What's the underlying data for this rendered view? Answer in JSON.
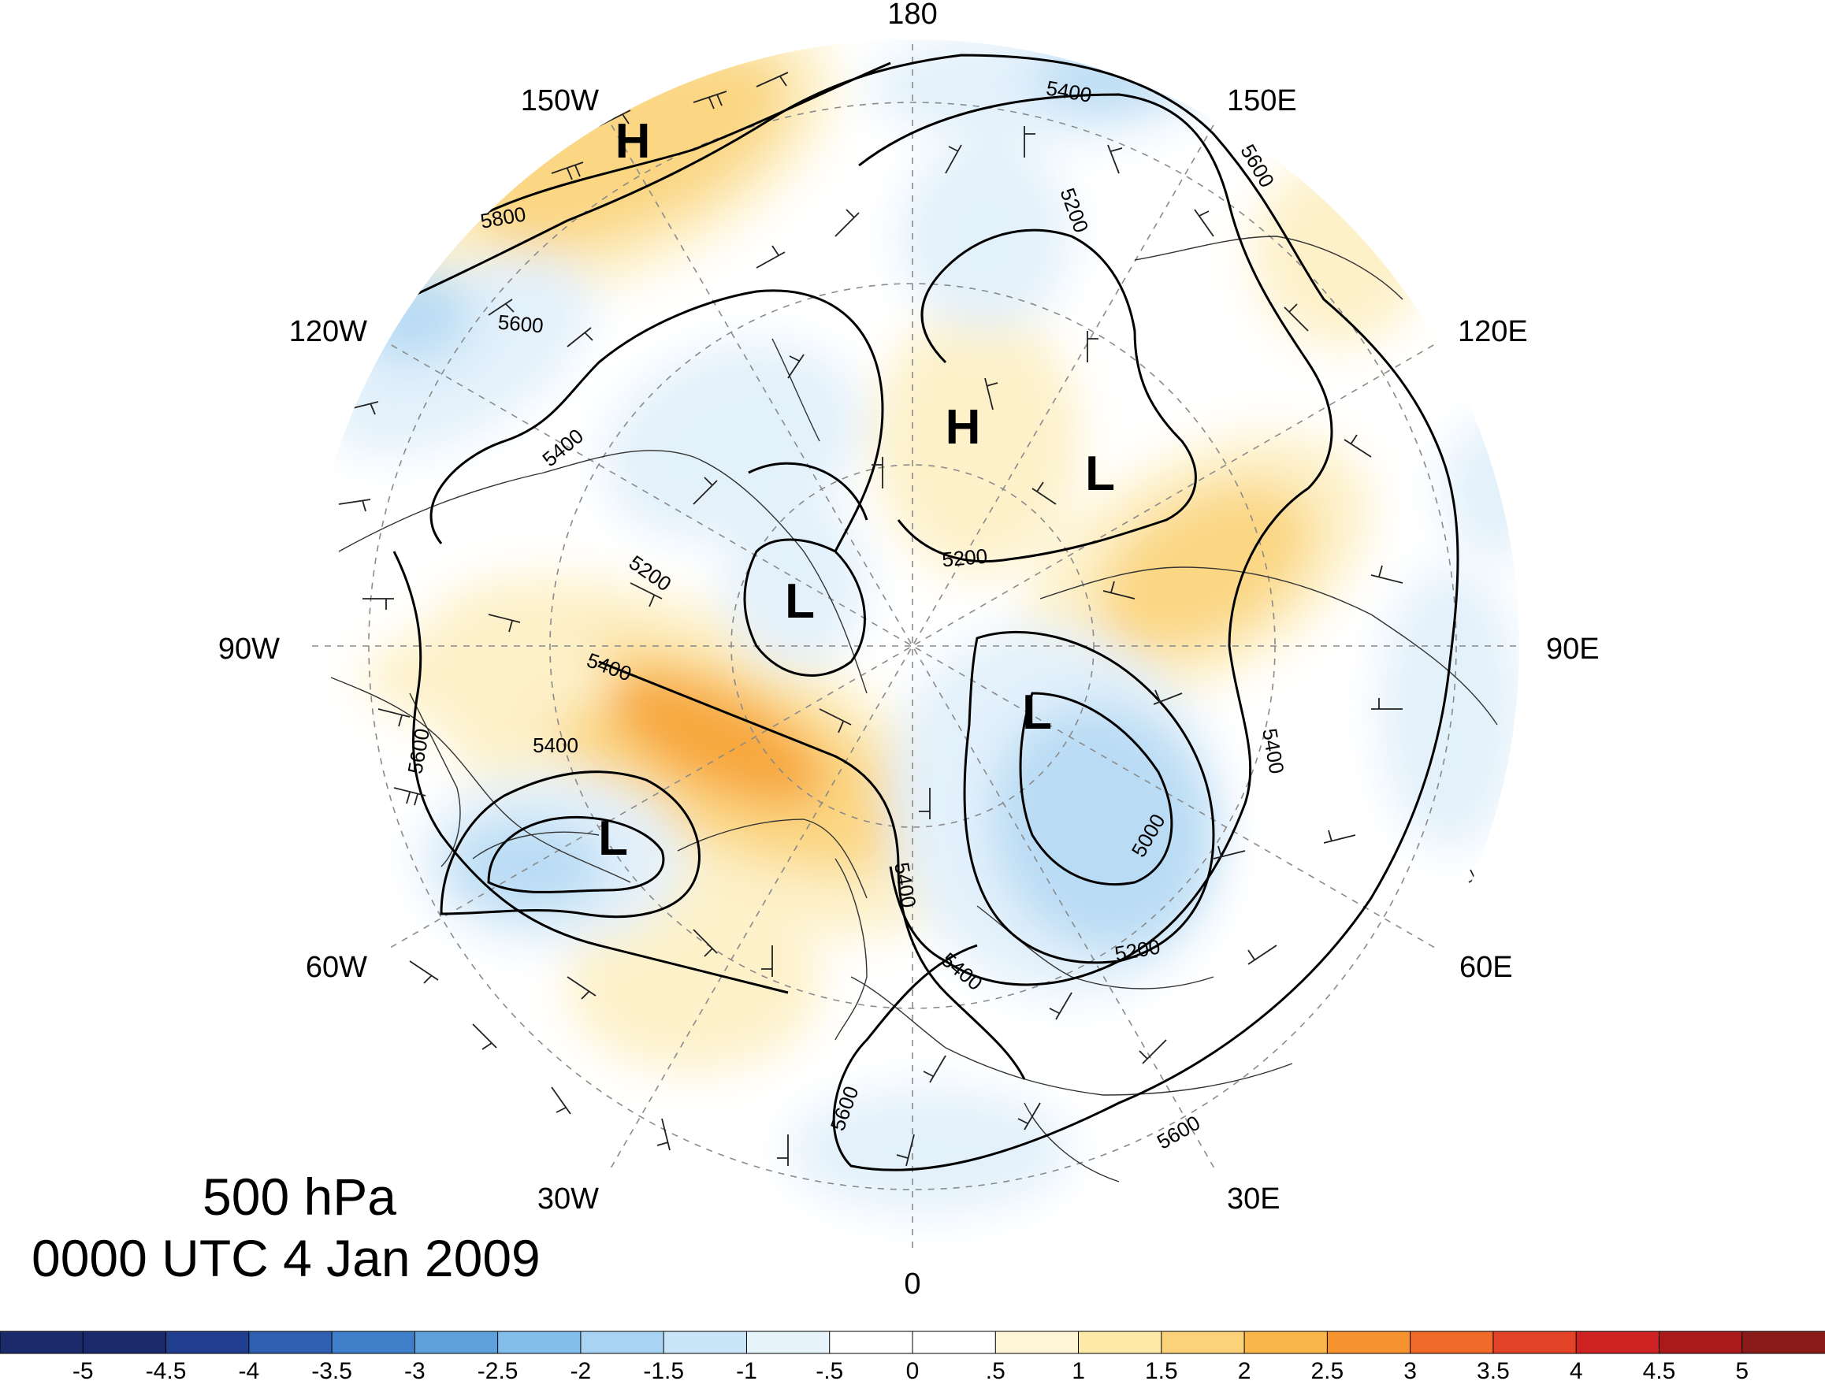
{
  "title": {
    "level": "500 hPa",
    "time": "0000 UTC 4 Jan 2009"
  },
  "longitude_labels": [
    "180",
    "150E",
    "120E",
    "90E",
    "60E",
    "30E",
    "0",
    "30W",
    "60W",
    "90W",
    "120W",
    "150W"
  ],
  "contour_labels": [
    "5400",
    "5600",
    "5200",
    "5800",
    "5600",
    "5400",
    "5200",
    "5200",
    "5400",
    "5400",
    "5400",
    "5400",
    "5400",
    "5000",
    "5200",
    "5600",
    "5600",
    "5600"
  ],
  "pressure_centers": [
    "H",
    "H",
    "L",
    "L",
    "L",
    "L"
  ],
  "colorbar": {
    "labels": [
      "-5",
      "-4.5",
      "-4",
      "-3.5",
      "-3",
      "-2.5",
      "-2",
      "-1.5",
      "-1",
      "-.5",
      "0",
      ".5",
      "1",
      "1.5",
      "2",
      "2.5",
      "3",
      "3.5",
      "4",
      "4.5",
      "5"
    ],
    "colors": [
      "#1b2a6b",
      "#223f8f",
      "#2e5fb0",
      "#3f7fc9",
      "#5ea0dc",
      "#83bde9",
      "#a8d3f2",
      "#cae5f7",
      "#e6f3fb",
      "#ffffff",
      "#ffffff",
      "#fff6d8",
      "#fde9a8",
      "#fbd27a",
      "#f9b64a",
      "#f6932e",
      "#f06a2a",
      "#e24226",
      "#cc2222",
      "#a91b1b",
      "#8b1a1a"
    ]
  },
  "colors": {
    "warm_light": "#fdf1c9",
    "warm_mid": "#fbd784",
    "warm_strong": "#f7a73e",
    "cool_light": "#e3f1fb",
    "cool_mid": "#b9dcf4",
    "cool_strong": "#8ec4ec"
  }
}
